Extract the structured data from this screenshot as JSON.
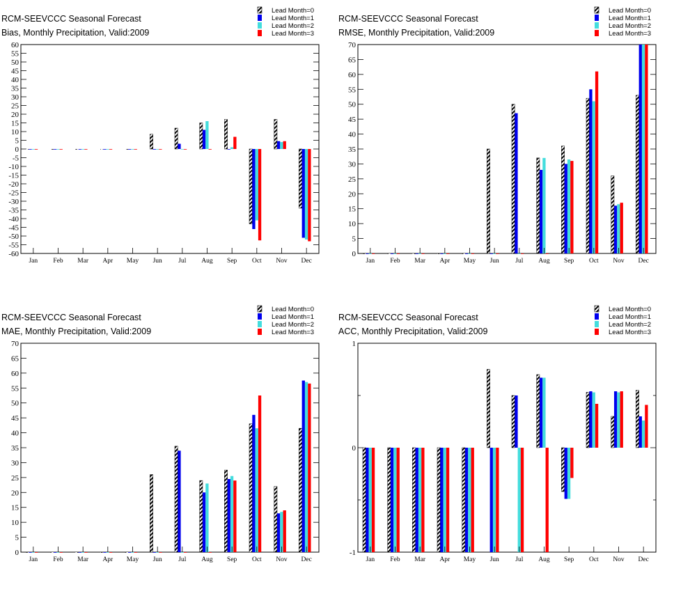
{
  "legend": {
    "entries": [
      "Lead Month=0",
      "Lead Month=1",
      "Lead Month=2",
      "Lead Month=3"
    ],
    "colors": [
      "hatched-black",
      "#0000ee",
      "#44dddd",
      "#ff0000"
    ]
  },
  "chart_data": [
    {
      "type": "bar",
      "title": "RCM-SEEVCCC Seasonal Forecast",
      "subtitle": "Bias, Monthly Precipitation, Valid:2009",
      "categories": [
        "Jan",
        "Feb",
        "Mar",
        "Apr",
        "May",
        "Jun",
        "Jul",
        "Aug",
        "Sep",
        "Oct",
        "Nov",
        "Dec"
      ],
      "ylim": [
        -60,
        60
      ],
      "yticks": [
        "60",
        "55",
        "50",
        "45",
        "40",
        "35",
        "30",
        "25",
        "20",
        "15",
        "10",
        "5",
        "0",
        "-5",
        "-10",
        "-15",
        "-20",
        "-25",
        "-30",
        "-35",
        "-40",
        "-45",
        "-50",
        "-55",
        "-60"
      ],
      "series": [
        {
          "name": "Lead Month=0",
          "values": [
            0,
            0,
            0,
            0,
            0,
            8.5,
            12,
            15,
            17,
            -43,
            17,
            -34
          ]
        },
        {
          "name": "Lead Month=1",
          "values": [
            0,
            0,
            0,
            0,
            0,
            0,
            3,
            11,
            0,
            -46,
            4.5,
            -51
          ]
        },
        {
          "name": "Lead Month=2",
          "values": [
            0,
            0,
            0,
            0,
            0,
            0,
            0,
            16,
            1,
            -41,
            4,
            -52
          ]
        },
        {
          "name": "Lead Month=3",
          "values": [
            0,
            0,
            0,
            0,
            0,
            0,
            0,
            0,
            7,
            -52.5,
            4.5,
            -53
          ]
        }
      ]
    },
    {
      "type": "bar",
      "title": "RCM-SEEVCCC Seasonal Forecast",
      "subtitle": "RMSE, Monthly Precipitation, Valid:2009",
      "categories": [
        "Jan",
        "Feb",
        "Mar",
        "Apr",
        "May",
        "Jun",
        "Jul",
        "Aug",
        "Sep",
        "Oct",
        "Nov",
        "Dec"
      ],
      "ylim": [
        0,
        70
      ],
      "yticks": [
        "70",
        "65",
        "60",
        "55",
        "50",
        "45",
        "40",
        "35",
        "30",
        "25",
        "20",
        "15",
        "10",
        "5",
        "0"
      ],
      "series": [
        {
          "name": "Lead Month=0",
          "values": [
            0,
            0,
            0,
            0,
            0,
            35,
            50,
            32,
            36,
            52,
            26,
            53
          ]
        },
        {
          "name": "Lead Month=1",
          "values": [
            0,
            0,
            0,
            0,
            0,
            0,
            47,
            28,
            30,
            55,
            16,
            70
          ]
        },
        {
          "name": "Lead Month=2",
          "values": [
            0,
            0,
            0,
            0,
            0,
            0,
            0,
            32,
            31.5,
            51,
            16.5,
            70
          ]
        },
        {
          "name": "Lead Month=3",
          "values": [
            0,
            0,
            0,
            0,
            0,
            0,
            0,
            0,
            31,
            61,
            17,
            70
          ]
        }
      ]
    },
    {
      "type": "bar",
      "title": "RCM-SEEVCCC Seasonal Forecast",
      "subtitle": "MAE, Monthly Precipitation, Valid:2009",
      "categories": [
        "Jan",
        "Feb",
        "Mar",
        "Apr",
        "May",
        "Jun",
        "Jul",
        "Aug",
        "Sep",
        "Oct",
        "Nov",
        "Dec"
      ],
      "ylim": [
        0,
        70
      ],
      "yticks": [
        "70",
        "65",
        "60",
        "55",
        "50",
        "45",
        "40",
        "35",
        "30",
        "25",
        "20",
        "15",
        "10",
        "5",
        "0"
      ],
      "series": [
        {
          "name": "Lead Month=0",
          "values": [
            0,
            0,
            0,
            0,
            0,
            26,
            35.5,
            24,
            27.5,
            43,
            22,
            41.5
          ]
        },
        {
          "name": "Lead Month=1",
          "values": [
            0,
            0,
            0,
            0,
            0,
            0,
            34,
            20,
            24.5,
            46,
            13,
            57.5
          ]
        },
        {
          "name": "Lead Month=2",
          "values": [
            0,
            0,
            0,
            0,
            0,
            0,
            0,
            23,
            25.5,
            41.5,
            13.5,
            57
          ]
        },
        {
          "name": "Lead Month=3",
          "values": [
            0,
            0,
            0,
            0,
            0,
            0,
            0,
            0,
            24,
            52.5,
            14,
            56.5
          ]
        }
      ]
    },
    {
      "type": "bar",
      "title": "RCM-SEEVCCC Seasonal Forecast",
      "subtitle": "ACC, Monthly Precipitation, Valid:2009",
      "categories": [
        "Jan",
        "Feb",
        "Mar",
        "Apr",
        "May",
        "Jun",
        "Jul",
        "Aug",
        "Sep",
        "Oct",
        "Nov",
        "Dec"
      ],
      "ylim": [
        -1,
        1
      ],
      "yticks": [
        "1",
        "0",
        "-1"
      ],
      "series": [
        {
          "name": "Lead Month=0",
          "values": [
            -1,
            -1,
            -1,
            -1,
            -1,
            0.75,
            0.5,
            0.7,
            -0.42,
            0.53,
            0.3,
            0.55
          ]
        },
        {
          "name": "Lead Month=1",
          "values": [
            -1,
            -1,
            -1,
            -1,
            -1,
            -1,
            0.5,
            0.67,
            -0.49,
            0.54,
            0.54,
            0.3
          ]
        },
        {
          "name": "Lead Month=2",
          "values": [
            -1,
            -1,
            -1,
            -1,
            -1,
            -1,
            -1,
            0.67,
            -0.49,
            0.53,
            0.53,
            0.26
          ]
        },
        {
          "name": "Lead Month=3",
          "values": [
            -1,
            -1,
            -1,
            -1,
            -1,
            -1,
            -1,
            -1,
            -0.29,
            0.42,
            0.54,
            0.41
          ]
        }
      ]
    }
  ]
}
